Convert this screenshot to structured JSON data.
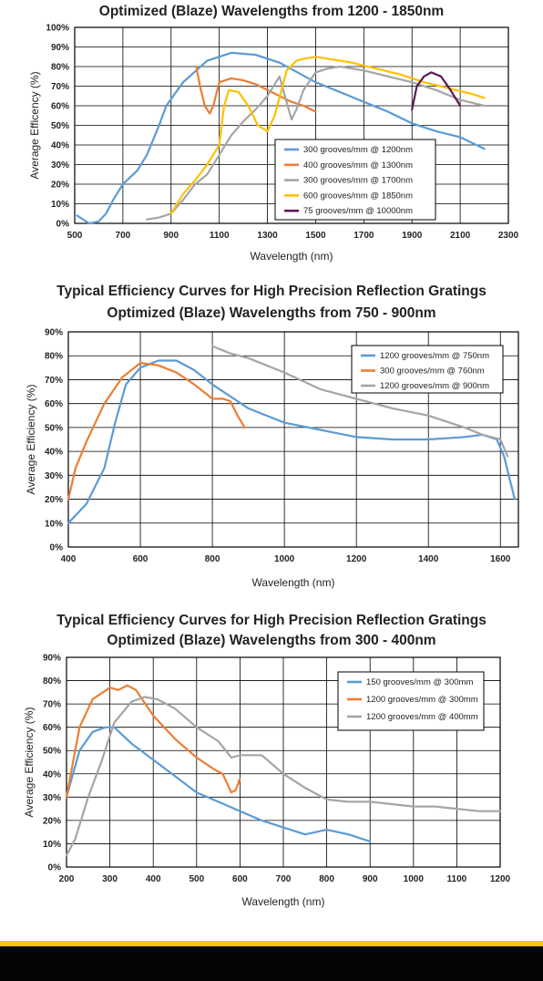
{
  "colors": {
    "blue": "#5b9bd5",
    "orange": "#ed7d31",
    "gray": "#a5a5a5",
    "yellow": "#ffc000",
    "purple": "#5c1a57",
    "footer_yellow": "#f3c318"
  },
  "chart_data": [
    {
      "type": "line",
      "title": "Optimized (Blaze) Wavelengths from 1200 - 1850nm",
      "subtitle": "",
      "xlabel": "Wavelength (nm)",
      "ylabel": "Average Efficency (%)",
      "xlim": [
        500,
        2300
      ],
      "ylim": [
        0,
        100
      ],
      "xticks": [
        500,
        700,
        900,
        1100,
        1300,
        1500,
        1700,
        1900,
        2100,
        2300
      ],
      "yticks": [
        0,
        10,
        20,
        30,
        40,
        50,
        60,
        70,
        80,
        90,
        100
      ],
      "grid": true,
      "legend_position": "bottom-right",
      "series": [
        {
          "name": "300 grooves/mm @ 1200nm",
          "color": "#5b9bd5",
          "x": [
            510,
            560,
            600,
            630,
            660,
            700,
            760,
            800,
            850,
            880,
            950,
            1050,
            1150,
            1250,
            1350,
            1500,
            1600,
            1700,
            1800,
            1900,
            2000,
            2100,
            2200
          ],
          "y": [
            4,
            0,
            1,
            5,
            12,
            20,
            27,
            35,
            50,
            60,
            72,
            83,
            87,
            86,
            82,
            72,
            67,
            62,
            57,
            51,
            47,
            44,
            38
          ]
        },
        {
          "name": "400 grooves/mm @ 1300nm",
          "color": "#ed7d31",
          "x": [
            1005,
            1020,
            1040,
            1060,
            1075,
            1100,
            1150,
            1200,
            1250,
            1300,
            1350,
            1400,
            1450,
            1500
          ],
          "y": [
            80,
            70,
            60,
            56,
            60,
            72,
            74,
            73,
            71,
            68,
            65,
            62,
            60,
            57
          ]
        },
        {
          "name": "300 grooves/mm @ 1700nm",
          "color": "#a5a5a5",
          "x": [
            800,
            850,
            900,
            950,
            1000,
            1050,
            1100,
            1150,
            1200,
            1250,
            1300,
            1350,
            1370,
            1400,
            1420,
            1450,
            1500,
            1550,
            1600,
            1700,
            1800,
            1900,
            2000,
            2100,
            2200
          ],
          "y": [
            2,
            3,
            5,
            12,
            20,
            25,
            35,
            45,
            52,
            58,
            65,
            75,
            66,
            53,
            58,
            68,
            77,
            79,
            80,
            78,
            75,
            72,
            68,
            63,
            60
          ]
        },
        {
          "name": "600 grooves/mm @ 1850nm",
          "color": "#ffc000",
          "x": [
            900,
            950,
            1000,
            1050,
            1100,
            1120,
            1140,
            1180,
            1220,
            1260,
            1300,
            1330,
            1380,
            1420,
            1450,
            1500,
            1550,
            1650,
            1750,
            1850,
            1950,
            2050,
            2150,
            2200
          ],
          "y": [
            5,
            15,
            22,
            30,
            40,
            60,
            68,
            67,
            60,
            50,
            47,
            55,
            78,
            83,
            84,
            85,
            84,
            82,
            79,
            76,
            72,
            69,
            66,
            64
          ]
        },
        {
          "name": "75 grooves/mm @ 10000nm",
          "color": "#5c1a57",
          "x": [
            1900,
            1920,
            1950,
            1980,
            2020,
            2060,
            2100
          ],
          "y": [
            58,
            70,
            75,
            77,
            75,
            68,
            60
          ]
        }
      ]
    },
    {
      "type": "line",
      "title": "Typical Efficiency Curves for High Precision Reflection Gratings",
      "subtitle": "Optimized (Blaze) Wavelengths from 750 - 900nm",
      "xlabel": "Wavelength (nm)",
      "ylabel": "Average Efficiency (%)",
      "xlim": [
        400,
        1650
      ],
      "ylim": [
        0,
        90
      ],
      "xticks": [
        400,
        600,
        800,
        1000,
        1200,
        1400,
        1600
      ],
      "yticks": [
        0,
        10,
        20,
        30,
        40,
        50,
        60,
        70,
        80,
        90
      ],
      "grid": true,
      "legend_position": "top-right",
      "series": [
        {
          "name": "1200 grooves/mm @ 750nm",
          "color": "#5b9bd5",
          "x": [
            400,
            450,
            500,
            530,
            560,
            600,
            650,
            700,
            750,
            800,
            850,
            900,
            1000,
            1100,
            1200,
            1300,
            1400,
            1500,
            1550,
            1590,
            1610,
            1640
          ],
          "y": [
            10,
            18,
            33,
            52,
            68,
            75,
            78,
            78,
            74,
            68,
            63,
            58,
            52,
            49,
            46,
            45,
            45,
            46,
            47,
            45,
            38,
            20
          ]
        },
        {
          "name": "300 grooves/mm @ 760nm",
          "color": "#ed7d31",
          "x": [
            400,
            420,
            450,
            500,
            550,
            600,
            650,
            700,
            750,
            800,
            830,
            850,
            870,
            890
          ],
          "y": [
            20,
            33,
            44,
            60,
            71,
            77,
            76,
            73,
            68,
            62,
            62,
            61,
            55,
            50
          ]
        },
        {
          "name": "1200 grooves/mm @ 900nm",
          "color": "#a5a5a5",
          "x": [
            800,
            850,
            900,
            950,
            1000,
            1100,
            1200,
            1300,
            1400,
            1500,
            1550,
            1600,
            1620
          ],
          "y": [
            84,
            81,
            79,
            76,
            73,
            66,
            62,
            58,
            55,
            50,
            47,
            45,
            38
          ]
        }
      ]
    },
    {
      "type": "line",
      "title": "Typical Efficiency Curves for High Precision Reflection Gratings",
      "subtitle": "Optimized (Blaze) Wavelengths from 300 - 400nm",
      "xlabel": "Wavelength (nm)",
      "ylabel": "Average Efficiency (%)",
      "xlim": [
        200,
        1200
      ],
      "ylim": [
        0,
        90
      ],
      "xticks": [
        200,
        300,
        400,
        500,
        600,
        700,
        800,
        900,
        1000,
        1100,
        1200
      ],
      "yticks": [
        0,
        10,
        20,
        30,
        40,
        50,
        60,
        70,
        80,
        90
      ],
      "grid": true,
      "legend_position": "top-right",
      "series": [
        {
          "name": "150 grooves/mm @ 300mm",
          "color": "#5b9bd5",
          "x": [
            200,
            230,
            260,
            290,
            310,
            350,
            400,
            450,
            500,
            550,
            600,
            650,
            700,
            750,
            800,
            850,
            900
          ],
          "y": [
            30,
            50,
            58,
            60,
            60,
            53,
            46,
            39,
            32,
            28,
            24,
            20,
            17,
            14,
            16,
            14,
            11
          ]
        },
        {
          "name": "1200 grooves/mm @ 300mm",
          "color": "#ed7d31",
          "x": [
            200,
            230,
            260,
            300,
            320,
            340,
            360,
            400,
            450,
            500,
            540,
            560,
            580,
            590,
            600
          ],
          "y": [
            30,
            60,
            72,
            77,
            76,
            78,
            76,
            65,
            55,
            47,
            42,
            40,
            32,
            33,
            38
          ]
        },
        {
          "name": "1200 grooves/mm @ 400mm",
          "color": "#a5a5a5",
          "x": [
            200,
            220,
            250,
            280,
            310,
            350,
            380,
            410,
            450,
            500,
            550,
            580,
            600,
            650,
            700,
            750,
            800,
            850,
            900,
            1000,
            1050,
            1100,
            1150,
            1200
          ],
          "y": [
            5,
            12,
            30,
            45,
            62,
            71,
            73,
            72,
            68,
            60,
            54,
            47,
            48,
            48,
            40,
            34,
            29,
            28,
            28,
            26,
            26,
            25,
            24,
            24
          ]
        }
      ]
    }
  ]
}
